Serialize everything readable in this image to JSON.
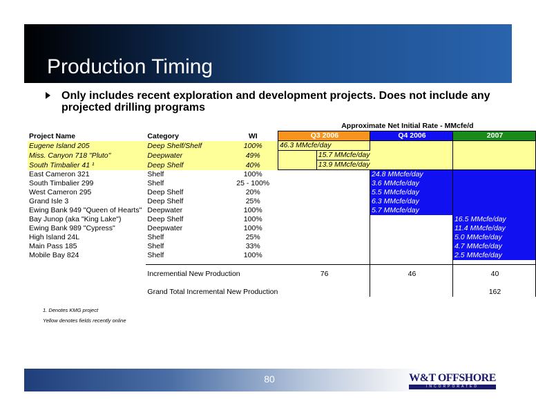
{
  "title": "Production Timing",
  "bullet": "Only includes recent exploration and development projects.  Does not include any projected drilling programs",
  "table": {
    "rate_title": "Approximate Net Initial Rate - MMcfe/d",
    "headers": {
      "project": "Project Name",
      "category": "Category",
      "wi": "WI",
      "q3": "Q3 2006",
      "q4": "Q4 2006",
      "y2007": "2007"
    },
    "rows": [
      {
        "project": "Eugene Island 205",
        "category": "Deep Shelf/Shelf",
        "wi": "100%",
        "q3": "46.3 MMcfe/day",
        "q4": "",
        "y2007": ""
      },
      {
        "project": "Miss. Canyon 718 \"Pluto\"",
        "category": "Deepwater",
        "wi": "49%",
        "q3": "15.7 MMcfe/day",
        "q4": "",
        "y2007": ""
      },
      {
        "project": "South Timbalier 41 ¹",
        "category": "Deep Shelf",
        "wi": "40%",
        "q3": "13.9 MMcfe/day",
        "q4": "",
        "y2007": ""
      },
      {
        "project": "East Cameron 321",
        "category": "Shelf",
        "wi": "100%",
        "q3": "",
        "q4": "24.8 MMcfe/day",
        "y2007": ""
      },
      {
        "project": "South Timbalier 299",
        "category": "Shelf",
        "wi": "25 - 100%",
        "q3": "",
        "q4": "3.6 MMcfe/day",
        "y2007": ""
      },
      {
        "project": "West Cameron 295",
        "category": "Deep Shelf",
        "wi": "20%",
        "q3": "",
        "q4": "5.5 MMcfe/day",
        "y2007": ""
      },
      {
        "project": "Grand Isle 3",
        "category": "Deep Shelf",
        "wi": "25%",
        "q3": "",
        "q4": "6.3 MMcfe/day",
        "y2007": ""
      },
      {
        "project": "Ewing Bank 949 \"Queen of Hearts\"",
        "category": "Deepwater",
        "wi": "100%",
        "q3": "",
        "q4": "5.7 MMcfe/day",
        "y2007": ""
      },
      {
        "project": "Bay Junop (aka \"King Lake\")",
        "category": "Deep Shelf",
        "wi": "100%",
        "q3": "",
        "q4": "",
        "y2007": "16.5 MMcfe/day"
      },
      {
        "project": "Ewing Bank 989 \"Cypress\"",
        "category": "Deepwater",
        "wi": "100%",
        "q3": "",
        "q4": "",
        "y2007": "11.4 MMcfe/day"
      },
      {
        "project": "High Island 24L",
        "category": "Shelf",
        "wi": "25%",
        "q3": "",
        "q4": "",
        "y2007": "5.0 MMcfe/day"
      },
      {
        "project": "Main Pass 185",
        "category": "Shelf",
        "wi": "33%",
        "q3": "",
        "q4": "",
        "y2007": "4.7 MMcfe/day"
      },
      {
        "project": "Mobile Bay 824",
        "category": "Shelf",
        "wi": "100%",
        "q3": "",
        "q4": "",
        "y2007": "2.5 MMcfe/day"
      }
    ],
    "incremental": {
      "label": "Incremential New Production",
      "q3": "76",
      "q4": "46",
      "y2007": "40"
    },
    "grand_total": {
      "label": "Grand Total Incremental New Production",
      "value": "162"
    }
  },
  "footnotes": [
    "1. Denotes KMG project",
    "Yellow denotes fields recently online"
  ],
  "footer": {
    "page_number": "80",
    "logo_name": "W&T OFFSHORE",
    "logo_sub": "INCORPORATED"
  }
}
